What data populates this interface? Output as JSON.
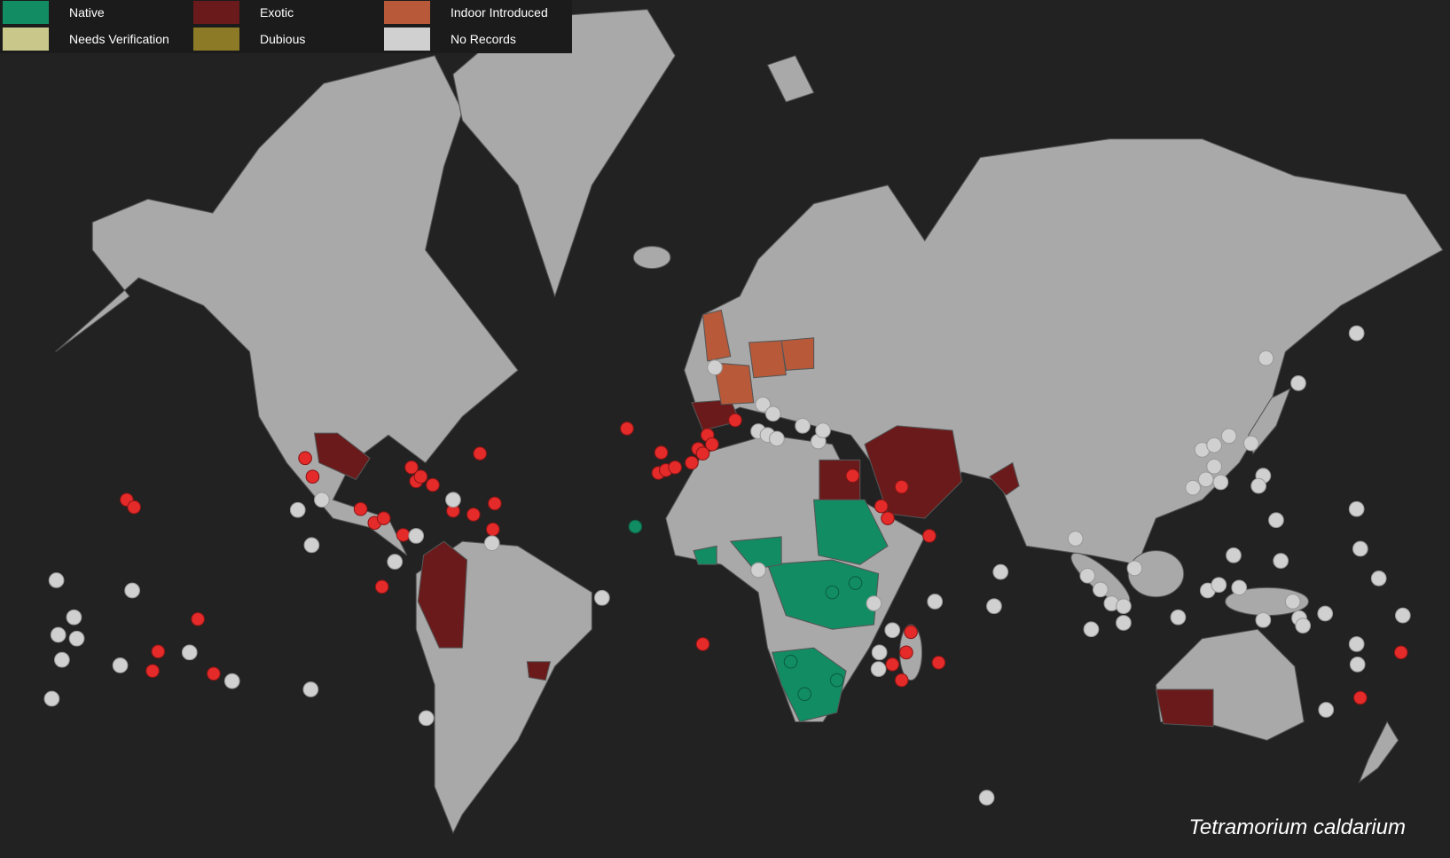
{
  "legend": {
    "items": [
      {
        "label": "Native",
        "color": "#128c62"
      },
      {
        "label": "Needs Verification",
        "color": "#c9c88a"
      },
      {
        "label": "Exotic",
        "color": "#6a1a1a"
      },
      {
        "label": "Dubious",
        "color": "#8c7a27"
      },
      {
        "label": "Indoor Introduced",
        "color": "#b85a3a"
      },
      {
        "label": "No Records",
        "color": "#d0d0d0"
      }
    ]
  },
  "species": "Tetramorium caldarium"
}
